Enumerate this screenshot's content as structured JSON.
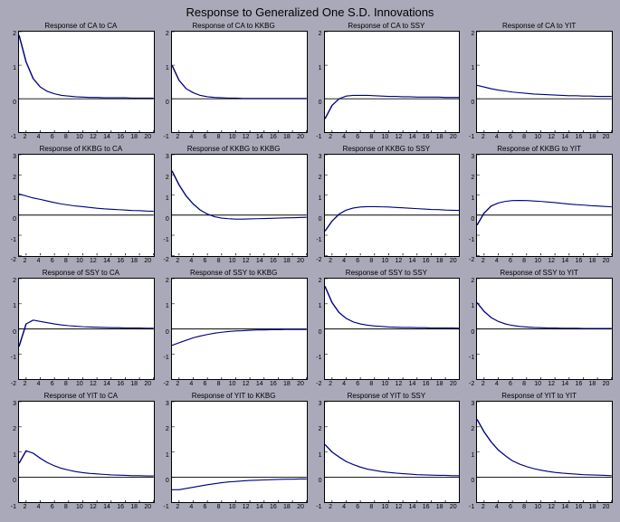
{
  "main_title": "Response to Generalized One S.D. Innovations",
  "variables": [
    "CA",
    "KKBG",
    "SSY",
    "YIT"
  ],
  "layout": {
    "rows": 4,
    "cols": 4
  },
  "plot_style": {
    "background": "#ffffff",
    "panel_bg": "#a9a9b9",
    "border_color": "#000000",
    "line_color": "#000080",
    "zero_line_color": "#000000",
    "line_width": 1,
    "title_fontsize": 8,
    "main_title_fontsize": 13,
    "tick_fontsize": 7
  },
  "x": {
    "min": 1,
    "max": 20,
    "ticks": [
      2,
      4,
      6,
      8,
      10,
      12,
      14,
      16,
      18,
      20
    ]
  },
  "panels": [
    {
      "title": "Response of CA to CA",
      "ylim": [
        -1,
        2
      ],
      "yticks": [
        -1,
        0,
        1,
        2
      ],
      "series": [
        1.9,
        1.1,
        0.6,
        0.35,
        0.22,
        0.15,
        0.1,
        0.08,
        0.06,
        0.05,
        0.04,
        0.04,
        0.03,
        0.03,
        0.03,
        0.03,
        0.02,
        0.02,
        0.02,
        0.02
      ]
    },
    {
      "title": "Response of CA to KKBG",
      "ylim": [
        -1,
        2
      ],
      "yticks": [
        -1,
        0,
        1,
        2
      ],
      "series": [
        1.0,
        0.55,
        0.3,
        0.18,
        0.1,
        0.06,
        0.04,
        0.03,
        0.02,
        0.02,
        0.01,
        0.01,
        0.01,
        0.01,
        0.01,
        0.01,
        0.01,
        0.01,
        0.01,
        0.01
      ]
    },
    {
      "title": "Response of CA to SSY",
      "ylim": [
        -1,
        2
      ],
      "yticks": [
        -1,
        0,
        1,
        2
      ],
      "series": [
        -0.6,
        -0.2,
        0.0,
        0.08,
        0.1,
        0.1,
        0.1,
        0.09,
        0.08,
        0.07,
        0.07,
        0.06,
        0.06,
        0.05,
        0.05,
        0.05,
        0.05,
        0.04,
        0.04,
        0.04
      ]
    },
    {
      "title": "Response of CA to YIT",
      "ylim": [
        -1,
        2
      ],
      "yticks": [
        -1,
        0,
        1,
        2
      ],
      "series": [
        0.4,
        0.35,
        0.3,
        0.26,
        0.23,
        0.2,
        0.18,
        0.16,
        0.14,
        0.13,
        0.12,
        0.11,
        0.1,
        0.09,
        0.09,
        0.08,
        0.08,
        0.07,
        0.07,
        0.07
      ]
    },
    {
      "title": "Response of KKBG to CA",
      "ylim": [
        -2,
        3
      ],
      "yticks": [
        -2,
        -1,
        0,
        1,
        2,
        3
      ],
      "series": [
        1.05,
        0.95,
        0.85,
        0.78,
        0.7,
        0.62,
        0.55,
        0.5,
        0.45,
        0.42,
        0.38,
        0.34,
        0.31,
        0.29,
        0.27,
        0.25,
        0.23,
        0.22,
        0.2,
        0.19
      ]
    },
    {
      "title": "Response of KKBG to KKBG",
      "ylim": [
        -2,
        3
      ],
      "yticks": [
        -2,
        -1,
        0,
        1,
        2,
        3
      ],
      "series": [
        2.2,
        1.5,
        0.95,
        0.55,
        0.25,
        0.05,
        -0.08,
        -0.15,
        -0.18,
        -0.2,
        -0.2,
        -0.19,
        -0.18,
        -0.17,
        -0.16,
        -0.15,
        -0.14,
        -0.13,
        -0.12,
        -0.11
      ]
    },
    {
      "title": "Response of KKBG to SSY",
      "ylim": [
        -2,
        3
      ],
      "yticks": [
        -2,
        -1,
        0,
        1,
        2,
        3
      ],
      "series": [
        -0.8,
        -0.3,
        0.05,
        0.25,
        0.35,
        0.4,
        0.42,
        0.42,
        0.41,
        0.4,
        0.38,
        0.36,
        0.34,
        0.32,
        0.3,
        0.28,
        0.27,
        0.25,
        0.24,
        0.23
      ]
    },
    {
      "title": "Response of KKBG to YIT",
      "ylim": [
        -2,
        3
      ],
      "yticks": [
        -2,
        -1,
        0,
        1,
        2,
        3
      ],
      "series": [
        -0.5,
        0.1,
        0.45,
        0.6,
        0.68,
        0.72,
        0.73,
        0.72,
        0.7,
        0.68,
        0.65,
        0.62,
        0.58,
        0.55,
        0.52,
        0.5,
        0.47,
        0.45,
        0.43,
        0.41
      ]
    },
    {
      "title": "Response of SSY to CA",
      "ylim": [
        -2,
        2
      ],
      "yticks": [
        -2,
        -1,
        0,
        1,
        2
      ],
      "series": [
        -0.7,
        0.2,
        0.35,
        0.3,
        0.25,
        0.2,
        0.16,
        0.13,
        0.11,
        0.09,
        0.08,
        0.07,
        0.06,
        0.05,
        0.05,
        0.04,
        0.04,
        0.04,
        0.03,
        0.03
      ]
    },
    {
      "title": "Response of SSY to KKBG",
      "ylim": [
        -2,
        2
      ],
      "yticks": [
        -2,
        -1,
        0,
        1,
        2
      ],
      "series": [
        -0.65,
        -0.55,
        -0.45,
        -0.35,
        -0.28,
        -0.22,
        -0.17,
        -0.13,
        -0.1,
        -0.08,
        -0.07,
        -0.05,
        -0.04,
        -0.04,
        -0.03,
        -0.03,
        -0.02,
        -0.02,
        -0.02,
        -0.02
      ]
    },
    {
      "title": "Response of SSY to SSY",
      "ylim": [
        -2,
        2
      ],
      "yticks": [
        -2,
        -1,
        0,
        1,
        2
      ],
      "series": [
        1.7,
        1.05,
        0.65,
        0.42,
        0.28,
        0.2,
        0.15,
        0.12,
        0.1,
        0.08,
        0.07,
        0.06,
        0.06,
        0.05,
        0.05,
        0.04,
        0.04,
        0.04,
        0.04,
        0.03
      ]
    },
    {
      "title": "Response of SSY to YIT",
      "ylim": [
        -2,
        2
      ],
      "yticks": [
        -2,
        -1,
        0,
        1,
        2
      ],
      "series": [
        1.05,
        0.7,
        0.45,
        0.3,
        0.2,
        0.14,
        0.1,
        0.08,
        0.06,
        0.05,
        0.04,
        0.04,
        0.03,
        0.03,
        0.03,
        0.02,
        0.02,
        0.02,
        0.02,
        0.02
      ]
    },
    {
      "title": "Response of YIT to CA",
      "ylim": [
        -1,
        3
      ],
      "yticks": [
        -1,
        0,
        1,
        2,
        3
      ],
      "series": [
        0.55,
        1.05,
        0.95,
        0.75,
        0.58,
        0.45,
        0.35,
        0.28,
        0.22,
        0.18,
        0.15,
        0.13,
        0.11,
        0.09,
        0.08,
        0.07,
        0.06,
        0.06,
        0.05,
        0.05
      ]
    },
    {
      "title": "Response of YIT to KKBG",
      "ylim": [
        -1,
        3
      ],
      "yticks": [
        -1,
        0,
        1,
        2,
        3
      ],
      "series": [
        -0.5,
        -0.5,
        -0.45,
        -0.4,
        -0.35,
        -0.3,
        -0.26,
        -0.22,
        -0.19,
        -0.17,
        -0.15,
        -0.13,
        -0.12,
        -0.11,
        -0.1,
        -0.09,
        -0.08,
        -0.08,
        -0.07,
        -0.07
      ]
    },
    {
      "title": "Response of YIT to SSY",
      "ylim": [
        -1,
        3
      ],
      "yticks": [
        -1,
        0,
        1,
        2,
        3
      ],
      "series": [
        1.3,
        1.0,
        0.8,
        0.62,
        0.5,
        0.4,
        0.32,
        0.27,
        0.22,
        0.19,
        0.16,
        0.14,
        0.12,
        0.1,
        0.09,
        0.08,
        0.07,
        0.07,
        0.06,
        0.06
      ]
    },
    {
      "title": "Response of YIT to YIT",
      "ylim": [
        -1,
        3
      ],
      "yticks": [
        -1,
        0,
        1,
        2,
        3
      ],
      "series": [
        2.3,
        1.8,
        1.4,
        1.08,
        0.85,
        0.65,
        0.52,
        0.42,
        0.34,
        0.28,
        0.23,
        0.19,
        0.16,
        0.14,
        0.12,
        0.1,
        0.09,
        0.08,
        0.07,
        0.06
      ]
    }
  ]
}
